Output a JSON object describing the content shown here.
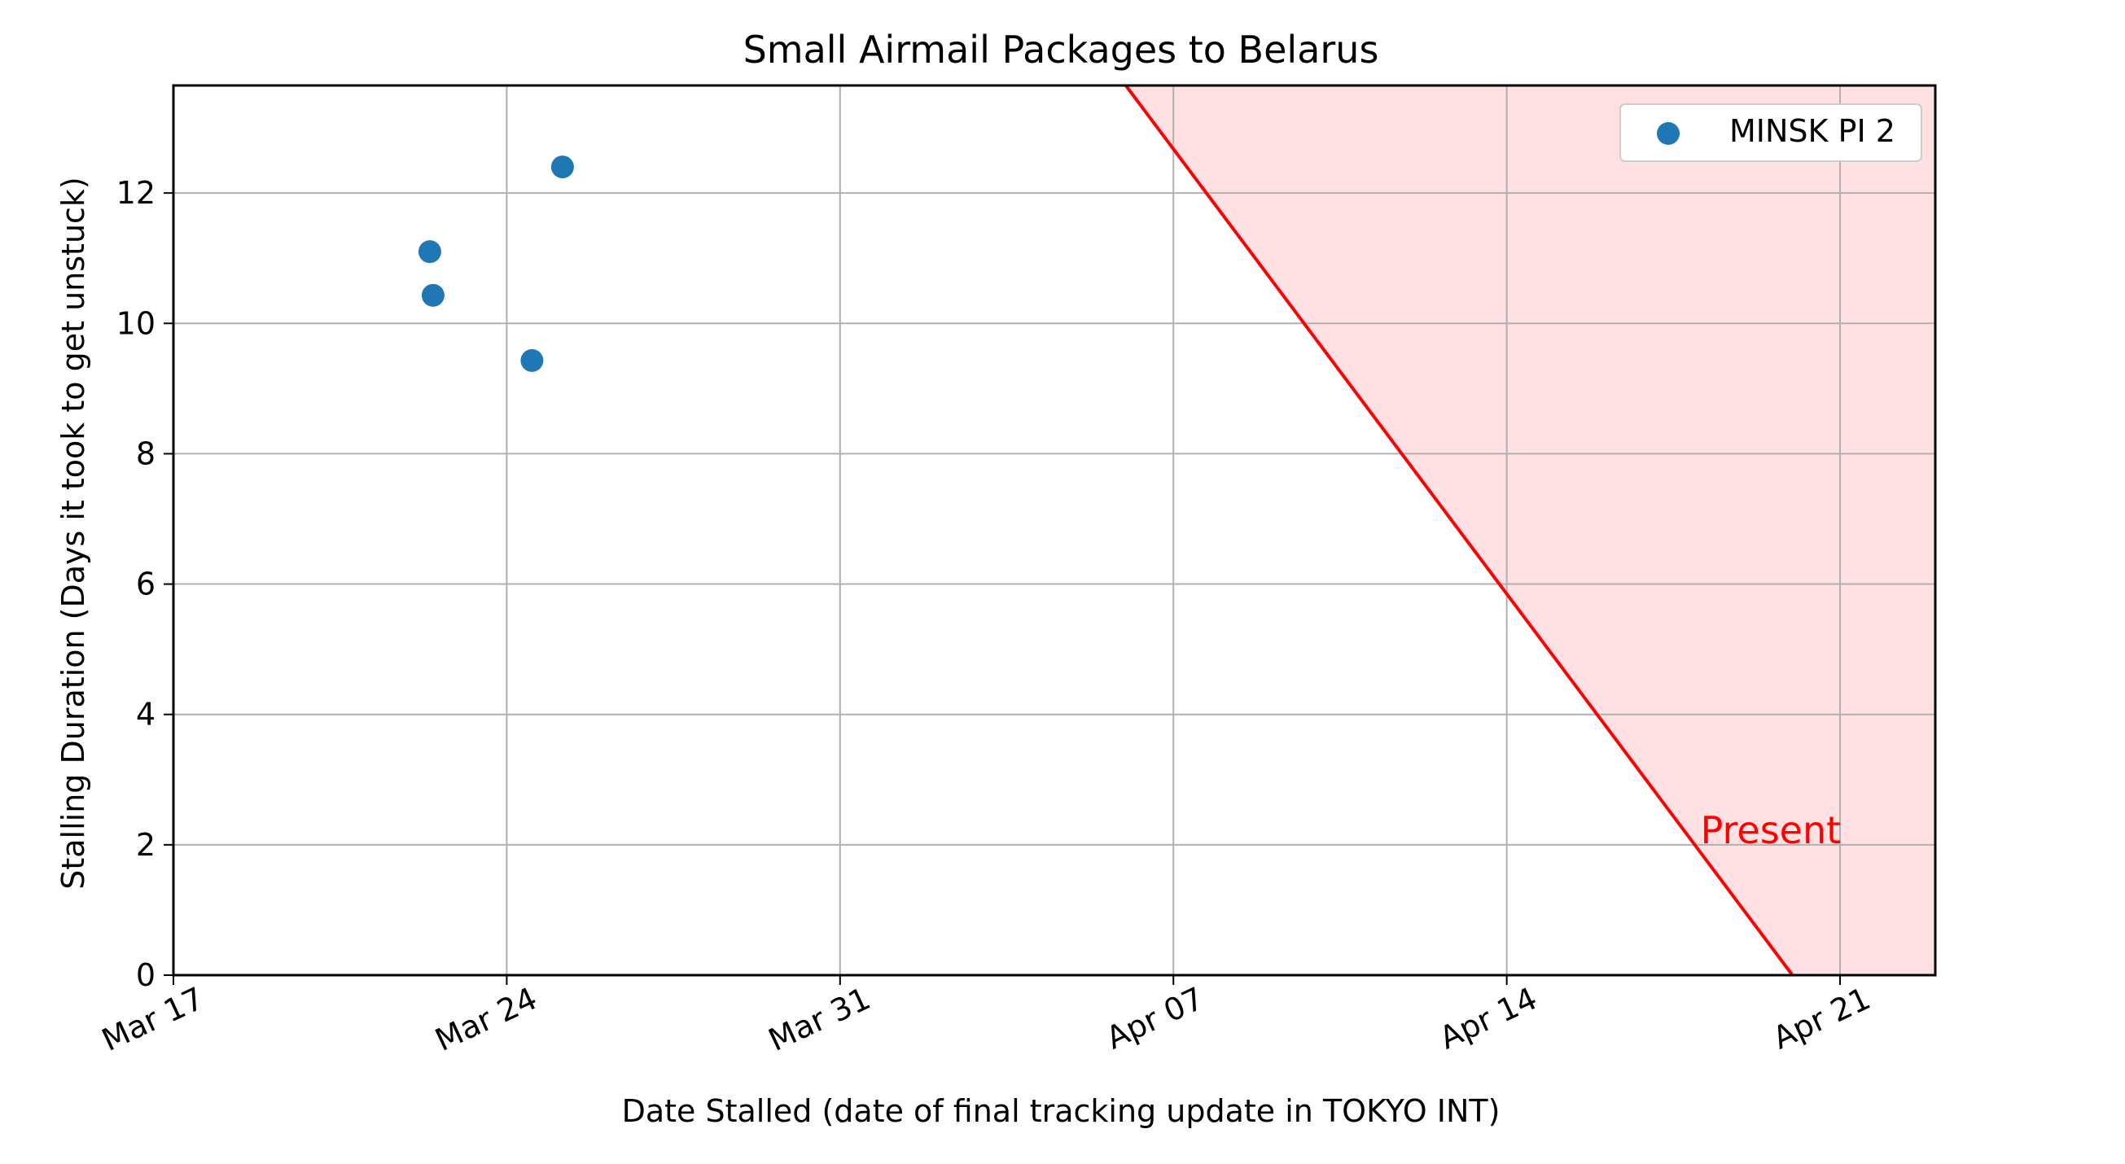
{
  "chart_data": {
    "type": "scatter",
    "title": "Small Airmail Packages to Belarus",
    "xlabel": "Date Stalled (date of final tracking update in TOKYO INT)",
    "ylabel": "Stalling Duration (Days it took to get unstuck)",
    "x_ticks": [
      "Mar 17",
      "Mar 24",
      "Mar 31",
      "Apr 07",
      "Apr 14",
      "Apr 21"
    ],
    "y_ticks": [
      "0",
      "2",
      "4",
      "6",
      "8",
      "10",
      "12"
    ],
    "xlim": [
      "Mar 17",
      "Apr 23"
    ],
    "ylim": [
      0,
      13.65
    ],
    "grid": true,
    "legend_position": "top-right",
    "series": [
      {
        "name": "MINSK PI 2",
        "color": "#1f77b4",
        "points": [
          {
            "x": "Mar 23",
            "y": 11.1
          },
          {
            "x": "Mar 23",
            "y": 10.43
          },
          {
            "x": "Mar 24",
            "y": 9.43
          },
          {
            "x": "Mar 25",
            "y": 12.4
          }
        ]
      }
    ],
    "present_line": {
      "label": "Present",
      "color": "#ff0000",
      "shade_color": "#ffe0e3",
      "points": [
        {
          "x": "Apr 06",
          "y": 13.65
        },
        {
          "x": "Apr 20",
          "y": 0
        }
      ]
    }
  }
}
